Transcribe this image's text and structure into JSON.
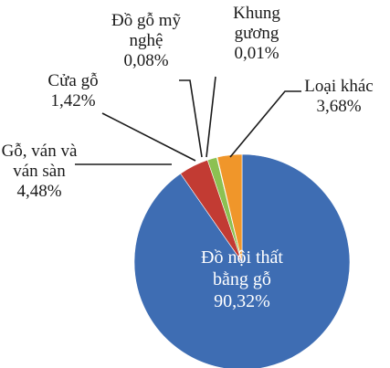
{
  "chart_data": {
    "type": "pie",
    "categories": [
      "Đồ nội thất bằng gỗ",
      "Gỗ, ván và ván sàn",
      "Cửa gỗ",
      "Đồ gỗ mỹ nghệ",
      "Khung gương",
      "Loại khác"
    ],
    "values": [
      90.32,
      4.48,
      1.42,
      0.08,
      0.01,
      3.68
    ],
    "value_labels": [
      "90,32%",
      "4,48%",
      "1,42%",
      "0,08%",
      "0,01%",
      "3,68%"
    ],
    "colors": [
      "#3e6db3",
      "#c23b33",
      "#8cc152",
      "#6e8f3a",
      "#888888",
      "#f0962a"
    ]
  }
}
